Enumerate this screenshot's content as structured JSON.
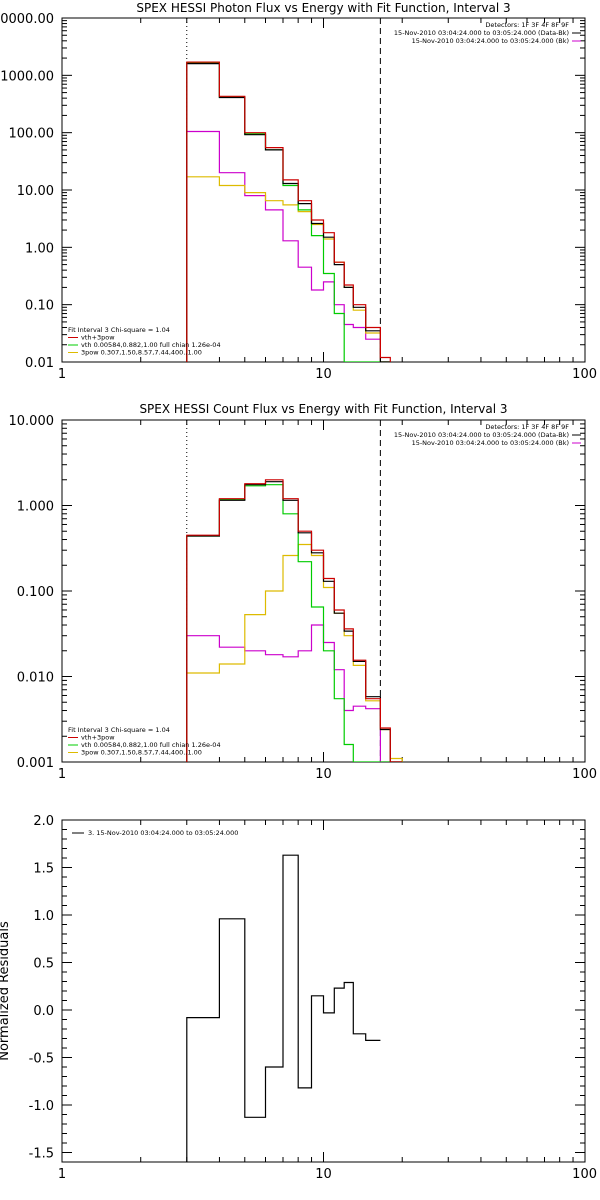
{
  "chart_data": [
    {
      "type": "line",
      "title": "SPEX HESSI Photon Flux vs Energy with Fit Function, Interval 3",
      "xscale": "log",
      "yscale": "log",
      "xlim": [
        1,
        100
      ],
      "ylim": [
        0.01,
        10000
      ],
      "x_ticks": [
        "1",
        "10",
        "100"
      ],
      "y_ticks": [
        "0.01",
        "0.10",
        "1.00",
        "10.00",
        "100.00",
        "1000.00",
        "0000.00"
      ],
      "y_tick_values": [
        0.01,
        0.1,
        1,
        10,
        100,
        1000,
        10000
      ],
      "vlines": [
        {
          "x": 3.0,
          "style": "dotted"
        },
        {
          "x": 16.5,
          "style": "dashed"
        }
      ],
      "legend_top_right": [
        {
          "label": "Detectors: 1F 3F 4F 8F 9F",
          "color": "#000000"
        },
        {
          "label": "15-Nov-2010 03:04:24.000 to 03:05:24.000 (Data-Bk)",
          "color": "#000000"
        },
        {
          "label": "15-Nov-2010 03:04:24.000 to 03:05:24.000 (Bk)",
          "color": "#cc00cc"
        }
      ],
      "legend_bottom_left": [
        {
          "label": "Fit Interval  3    Chi-square = 1.04",
          "color": "#000000"
        },
        {
          "label": "vth+3pow",
          "color": "#cc0000"
        },
        {
          "label": "vth  0.00584,0.882,1.00   full chian 1.26e-04",
          "color": "#00cc00"
        },
        {
          "label": "3pow  0.307,1.50,8.57,7.44,400.,1.00",
          "color": "#ddbb00"
        }
      ],
      "edges": [
        3.0,
        4.0,
        5.0,
        6.0,
        7.0,
        8.0,
        9.0,
        10.0,
        11.0,
        12.0,
        13.0,
        14.5,
        16.5,
        18.0
      ],
      "series": [
        {
          "name": "vth+3pow",
          "color": "#cc0000",
          "values": [
            1700,
            430,
            100,
            55,
            15,
            6.5,
            3.0,
            1.8,
            0.55,
            0.22,
            0.1,
            0.04,
            0.012
          ]
        },
        {
          "name": "Data-Bk",
          "color": "#000000",
          "values": [
            1600,
            410,
            92,
            50,
            13,
            5.8,
            2.6,
            1.5,
            0.5,
            0.2,
            0.09,
            0.035,
            0.01
          ]
        },
        {
          "name": "vth",
          "color": "#00cc00",
          "values": [
            1650,
            415,
            95,
            50,
            12,
            4.5,
            1.6,
            0.35,
            0.07,
            0.006,
            0.0,
            0.0,
            0.0
          ]
        },
        {
          "name": "3pow",
          "color": "#ddbb00",
          "values": [
            17,
            12,
            9,
            6.5,
            5.5,
            4.2,
            2.5,
            1.4,
            0.55,
            0.2,
            0.08,
            0.032,
            0.009
          ]
        },
        {
          "name": "Bk",
          "color": "#cc00cc",
          "values": [
            105,
            20,
            8,
            4.5,
            1.3,
            0.45,
            0.18,
            0.25,
            0.1,
            0.045,
            0.04,
            0.025,
            0.004
          ]
        }
      ]
    },
    {
      "type": "line",
      "title": "SPEX HESSI Count Flux vs Energy with Fit Function, Interval 3",
      "xscale": "log",
      "yscale": "log",
      "xlim": [
        1,
        100
      ],
      "ylim": [
        0.001,
        10
      ],
      "x_ticks": [
        "1",
        "10",
        "100"
      ],
      "y_ticks": [
        "0.001",
        "0.010",
        "0.100",
        "1.000",
        "10.000"
      ],
      "y_tick_values": [
        0.001,
        0.01,
        0.1,
        1,
        10
      ],
      "vlines": [
        {
          "x": 3.0,
          "style": "dotted"
        },
        {
          "x": 16.5,
          "style": "dashed"
        }
      ],
      "legend_top_right": [
        {
          "label": "Detectors: 1F 3F 4F 8F 9F",
          "color": "#000000"
        },
        {
          "label": "15-Nov-2010 03:04:24.000 to 03:05:24.000 (Data-Bk)",
          "color": "#000000"
        },
        {
          "label": "15-Nov-2010 03:04:24.000 to 03:05:24.000 (Bk)",
          "color": "#cc00cc"
        }
      ],
      "legend_bottom_left": [
        {
          "label": "Fit Interval  3    Chi-square = 1.04",
          "color": "#000000"
        },
        {
          "label": "vth+3pow",
          "color": "#cc0000"
        },
        {
          "label": "vth  0.00584,0.882,1.00   full chian 1.26e-04",
          "color": "#00cc00"
        },
        {
          "label": "3pow  0.307,1.50,8.57,7.44,400.,1.00",
          "color": "#ddbb00"
        }
      ],
      "edges": [
        3.0,
        4.0,
        5.0,
        6.0,
        7.0,
        8.0,
        9.0,
        10.0,
        11.0,
        12.0,
        13.0,
        14.5,
        16.5,
        18.0,
        20.0
      ],
      "series": [
        {
          "name": "vth+3pow",
          "color": "#cc0000",
          "values": [
            0.45,
            1.2,
            1.8,
            2.0,
            1.2,
            0.5,
            0.3,
            0.14,
            0.06,
            0.036,
            0.0155,
            0.0055,
            0.0025,
            0.001
          ]
        },
        {
          "name": "Data-Bk",
          "color": "#000000",
          "values": [
            0.44,
            1.15,
            1.75,
            1.9,
            1.15,
            0.48,
            0.28,
            0.13,
            0.055,
            0.034,
            0.015,
            0.0058,
            0.0024,
            0.001
          ]
        },
        {
          "name": "vth",
          "color": "#00cc00",
          "values": [
            0.44,
            1.18,
            1.7,
            1.75,
            0.8,
            0.22,
            0.065,
            0.02,
            0.0055,
            0.0016,
            0.0005,
            0.0,
            0.0,
            0.0
          ]
        },
        {
          "name": "3pow",
          "color": "#ddbb00",
          "values": [
            0.011,
            0.014,
            0.053,
            0.1,
            0.26,
            0.35,
            0.26,
            0.11,
            0.055,
            0.03,
            0.0135,
            0.0052,
            0.0024,
            0.0011
          ]
        },
        {
          "name": "Bk",
          "color": "#cc00cc",
          "values": [
            0.03,
            0.022,
            0.02,
            0.018,
            0.017,
            0.02,
            0.04,
            0.025,
            0.012,
            0.004,
            0.0045,
            0.0042,
            0.0005,
            0.0
          ]
        }
      ]
    },
    {
      "type": "line",
      "title": "",
      "xscale": "log",
      "yscale": "linear",
      "xlim": [
        1,
        100
      ],
      "ylim": [
        -1.6,
        2.0
      ],
      "ylabel": "Normalized Residuals",
      "x_ticks": [
        "1",
        "10",
        "100"
      ],
      "y_ticks": [
        "-1.5",
        "-1.0",
        "-0.5",
        "0.0",
        "0.5",
        "1.0",
        "1.5",
        "2.0"
      ],
      "y_tick_values": [
        -1.5,
        -1.0,
        -0.5,
        0.0,
        0.5,
        1.0,
        1.5,
        2.0
      ],
      "legend_top_left": [
        {
          "label": "3. 15-Nov-2010 03:04:24.000 to 03:05:24.000",
          "color": "#000000"
        }
      ],
      "edges": [
        3.0,
        4.0,
        5.0,
        6.0,
        7.0,
        8.0,
        9.0,
        10.0,
        11.0,
        12.0,
        13.0,
        14.5,
        16.5
      ],
      "series": [
        {
          "name": "3. 15-Nov-2010 03:04:24.000 to 03:05:24.000",
          "color": "#000000",
          "values": [
            -0.08,
            0.96,
            -1.13,
            -0.6,
            1.63,
            -0.82,
            0.15,
            -0.03,
            0.23,
            0.29,
            -0.25,
            -0.32
          ]
        }
      ]
    }
  ]
}
